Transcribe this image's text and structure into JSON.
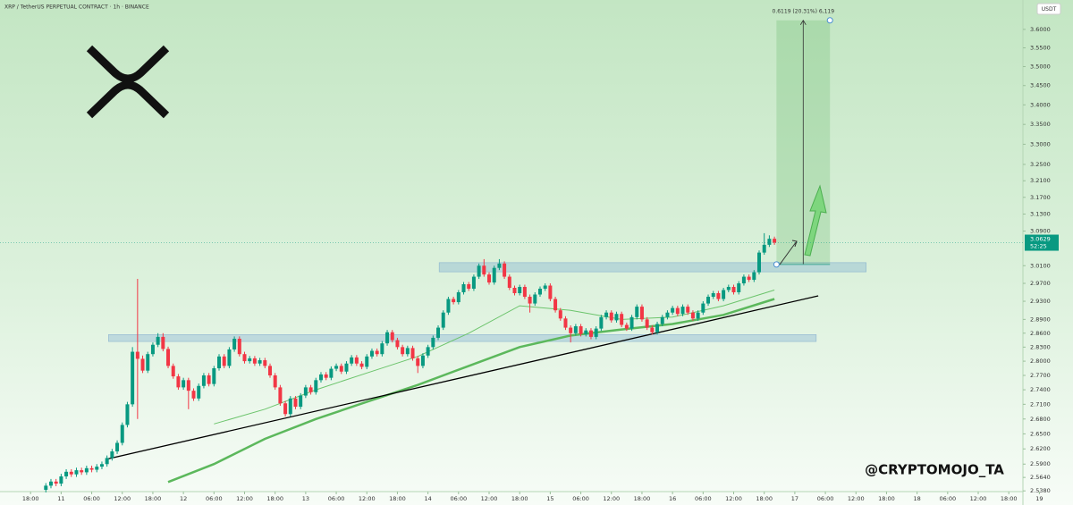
{
  "chart_data": {
    "type": "candlestick",
    "title": "XRP / TetherUS PERPETUAL CONTRACT · 1h · BINANCE",
    "currency": "USDT",
    "watermark": "@CRYPTOMOJO_TA",
    "log_scale": true,
    "up_color": "#089981",
    "down_color": "#f23645",
    "xlim": [
      -12,
      198.6
    ],
    "ylim": [
      2.511,
      3.681
    ],
    "xticks": [
      {
        "value": -6,
        "label": "18:00"
      },
      {
        "value": 0,
        "label": "11"
      },
      {
        "value": 6,
        "label": "06:00"
      },
      {
        "value": 12,
        "label": "12:00"
      },
      {
        "value": 18,
        "label": "18:00"
      },
      {
        "value": 24,
        "label": "12"
      },
      {
        "value": 30,
        "label": "06:00"
      },
      {
        "value": 36,
        "label": "12:00"
      },
      {
        "value": 42,
        "label": "18:00"
      },
      {
        "value": 48,
        "label": "13"
      },
      {
        "value": 54,
        "label": "06:00"
      },
      {
        "value": 60,
        "label": "12:00"
      },
      {
        "value": 66,
        "label": "18:00"
      },
      {
        "value": 72,
        "label": "14"
      },
      {
        "value": 78,
        "label": "06:00"
      },
      {
        "value": 84,
        "label": "12:00"
      },
      {
        "value": 90,
        "label": "18:00"
      },
      {
        "value": 96,
        "label": "15"
      },
      {
        "value": 102,
        "label": "06:00"
      },
      {
        "value": 108,
        "label": "12:00"
      },
      {
        "value": 114,
        "label": "18:00"
      },
      {
        "value": 120,
        "label": "16"
      },
      {
        "value": 126,
        "label": "06:00"
      },
      {
        "value": 132,
        "label": "12:00"
      },
      {
        "value": 138,
        "label": "18:00"
      },
      {
        "value": 144,
        "label": "17"
      },
      {
        "value": 150,
        "label": "06:00"
      },
      {
        "value": 156,
        "label": "12:00"
      },
      {
        "value": 162,
        "label": "18:00"
      },
      {
        "value": 168,
        "label": "18"
      },
      {
        "value": 174,
        "label": "06:00"
      },
      {
        "value": 180,
        "label": "12:00"
      },
      {
        "value": 186,
        "label": "18:00"
      },
      {
        "value": 192,
        "label": "19"
      }
    ],
    "yticks": [
      {
        "value": 3.6,
        "label": "3.6000"
      },
      {
        "value": 3.55,
        "label": "3.5500"
      },
      {
        "value": 3.5,
        "label": "3.5000"
      },
      {
        "value": 3.45,
        "label": "3.4500"
      },
      {
        "value": 3.4,
        "label": "3.4000"
      },
      {
        "value": 3.35,
        "label": "3.3500"
      },
      {
        "value": 3.3,
        "label": "3.3000"
      },
      {
        "value": 3.25,
        "label": "3.2500"
      },
      {
        "value": 3.21,
        "label": "3.2100"
      },
      {
        "value": 3.17,
        "label": "3.1700"
      },
      {
        "value": 3.13,
        "label": "3.1300"
      },
      {
        "value": 3.09,
        "label": "3.0900"
      },
      {
        "value": 3.01,
        "label": "3.0100"
      },
      {
        "value": 2.97,
        "label": "2.9700"
      },
      {
        "value": 2.93,
        "label": "2.9300"
      },
      {
        "value": 2.89,
        "label": "2.8900"
      },
      {
        "value": 2.86,
        "label": "2.8600"
      },
      {
        "value": 2.83,
        "label": "2.8300"
      },
      {
        "value": 2.8,
        "label": "2.8000"
      },
      {
        "value": 2.77,
        "label": "2.7700"
      },
      {
        "value": 2.74,
        "label": "2.7400"
      },
      {
        "value": 2.71,
        "label": "2.7100"
      },
      {
        "value": 2.68,
        "label": "2.6800"
      },
      {
        "value": 2.65,
        "label": "2.6500"
      },
      {
        "value": 2.62,
        "label": "2.6200"
      },
      {
        "value": 2.59,
        "label": "2.5900"
      },
      {
        "value": 2.564,
        "label": "2.5640"
      },
      {
        "value": 2.538,
        "label": "2.5380"
      }
    ],
    "x": [
      -3,
      -2,
      -1,
      0,
      1,
      2,
      3,
      4,
      5,
      6,
      7,
      8,
      9,
      10,
      11,
      12,
      13,
      14,
      15,
      16,
      17,
      18,
      19,
      20,
      21,
      22,
      23,
      24,
      25,
      26,
      27,
      28,
      29,
      30,
      31,
      32,
      33,
      34,
      35,
      36,
      37,
      38,
      39,
      40,
      41,
      42,
      43,
      44,
      45,
      46,
      47,
      48,
      49,
      50,
      51,
      52,
      53,
      54,
      55,
      56,
      57,
      58,
      59,
      60,
      61,
      62,
      63,
      64,
      65,
      66,
      67,
      68,
      69,
      70,
      71,
      72,
      73,
      74,
      75,
      76,
      77,
      78,
      79,
      80,
      81,
      82,
      83,
      84,
      85,
      86,
      87,
      88,
      89,
      90,
      91,
      92,
      93,
      94,
      95,
      96,
      97,
      98,
      99,
      100,
      101,
      102,
      103,
      104,
      105,
      106,
      107,
      108,
      109,
      110,
      111,
      112,
      113,
      114,
      115,
      116,
      117,
      118,
      119,
      120,
      121,
      122,
      123,
      124,
      125,
      126,
      127,
      128,
      129,
      130,
      131,
      132,
      133,
      134,
      135,
      136,
      137,
      138,
      139,
      140
    ],
    "open": [
      2.54,
      2.548,
      2.556,
      2.552,
      2.566,
      2.575,
      2.57,
      2.578,
      2.574,
      2.582,
      2.579,
      2.585,
      2.59,
      2.602,
      2.615,
      2.632,
      2.668,
      2.71,
      2.82,
      2.805,
      2.78,
      2.815,
      2.835,
      2.852,
      2.826,
      2.79,
      2.768,
      2.745,
      2.76,
      2.738,
      2.722,
      2.748,
      2.77,
      2.752,
      2.785,
      2.81,
      2.79,
      2.825,
      2.848,
      2.815,
      2.8,
      2.806,
      2.795,
      2.802,
      2.79,
      2.77,
      2.745,
      2.712,
      2.69,
      2.722,
      2.705,
      2.728,
      2.745,
      2.735,
      2.76,
      2.772,
      2.765,
      2.784,
      2.79,
      2.778,
      2.795,
      2.808,
      2.795,
      2.788,
      2.81,
      2.822,
      2.815,
      2.838,
      2.862,
      2.845,
      2.83,
      2.815,
      2.828,
      2.806,
      2.79,
      2.812,
      2.83,
      2.85,
      2.872,
      2.905,
      2.935,
      2.928,
      2.95,
      2.968,
      2.958,
      2.985,
      3.01,
      2.99,
      2.972,
      3.005,
      3.015,
      2.985,
      2.96,
      2.948,
      2.962,
      2.94,
      2.925,
      2.945,
      2.958,
      2.965,
      2.935,
      2.91,
      2.892,
      2.872,
      2.86,
      2.875,
      2.858,
      2.866,
      2.852,
      2.87,
      2.895,
      2.905,
      2.888,
      2.902,
      2.878,
      2.87,
      2.895,
      2.918,
      2.89,
      2.872,
      2.862,
      2.88,
      2.895,
      2.905,
      2.915,
      2.902,
      2.918,
      2.905,
      2.892,
      2.905,
      2.925,
      2.94,
      2.948,
      2.935,
      2.955,
      2.962,
      2.95,
      2.97,
      2.985,
      2.978,
      2.995,
      3.04,
      3.058,
      3.072
    ],
    "high": [
      2.553,
      2.561,
      2.561,
      2.571,
      2.58,
      2.58,
      2.583,
      2.583,
      2.587,
      2.587,
      2.59,
      2.595,
      2.607,
      2.62,
      2.637,
      2.673,
      2.715,
      2.83,
      2.98,
      2.812,
      2.82,
      2.84,
      2.86,
      2.86,
      2.831,
      2.795,
      2.773,
      2.765,
      2.765,
      2.743,
      2.753,
      2.775,
      2.775,
      2.79,
      2.815,
      2.815,
      2.83,
      2.853,
      2.853,
      2.82,
      2.811,
      2.811,
      2.807,
      2.807,
      2.795,
      2.775,
      2.75,
      2.717,
      2.727,
      2.727,
      2.733,
      2.75,
      2.75,
      2.765,
      2.777,
      2.777,
      2.789,
      2.795,
      2.795,
      2.8,
      2.813,
      2.813,
      2.8,
      2.815,
      2.827,
      2.827,
      2.843,
      2.867,
      2.867,
      2.85,
      2.835,
      2.833,
      2.833,
      2.811,
      2.817,
      2.835,
      2.855,
      2.877,
      2.91,
      2.94,
      2.94,
      2.955,
      2.973,
      2.973,
      2.99,
      3.015,
      3.025,
      2.995,
      3.01,
      3.025,
      3.02,
      2.99,
      2.965,
      2.967,
      2.967,
      2.945,
      2.95,
      2.963,
      2.97,
      2.97,
      2.94,
      2.915,
      2.897,
      2.877,
      2.88,
      2.88,
      2.871,
      2.871,
      2.875,
      2.9,
      2.91,
      2.91,
      2.907,
      2.907,
      2.883,
      2.9,
      2.923,
      2.923,
      2.895,
      2.877,
      2.885,
      2.9,
      2.91,
      2.92,
      2.92,
      2.923,
      2.923,
      2.91,
      2.91,
      2.93,
      2.945,
      2.953,
      2.953,
      2.96,
      2.967,
      2.967,
      2.975,
      2.99,
      2.99,
      3.0,
      3.045,
      3.085,
      3.08,
      3.077
    ],
    "low": [
      2.535,
      2.543,
      2.547,
      2.547,
      2.561,
      2.565,
      2.565,
      2.569,
      2.569,
      2.574,
      2.574,
      2.58,
      2.585,
      2.597,
      2.61,
      2.627,
      2.663,
      2.705,
      2.68,
      2.775,
      2.775,
      2.81,
      2.83,
      2.821,
      2.785,
      2.763,
      2.74,
      2.74,
      2.7,
      2.717,
      2.717,
      2.743,
      2.747,
      2.747,
      2.78,
      2.785,
      2.785,
      2.82,
      2.81,
      2.795,
      2.795,
      2.79,
      2.79,
      2.785,
      2.765,
      2.74,
      2.707,
      2.685,
      2.685,
      2.7,
      2.7,
      2.723,
      2.73,
      2.73,
      2.755,
      2.76,
      2.76,
      2.779,
      2.773,
      2.773,
      2.79,
      2.79,
      2.783,
      2.783,
      2.805,
      2.81,
      2.81,
      2.833,
      2.84,
      2.825,
      2.81,
      2.81,
      2.801,
      2.775,
      2.785,
      2.807,
      2.825,
      2.845,
      2.867,
      2.9,
      2.923,
      2.923,
      2.945,
      2.953,
      2.953,
      2.98,
      2.985,
      2.967,
      2.967,
      3.0,
      2.98,
      2.955,
      2.943,
      2.943,
      2.935,
      2.905,
      2.92,
      2.94,
      2.953,
      2.93,
      2.905,
      2.887,
      2.867,
      2.84,
      2.855,
      2.853,
      2.853,
      2.847,
      2.847,
      2.865,
      2.89,
      2.883,
      2.883,
      2.873,
      2.865,
      2.865,
      2.89,
      2.885,
      2.867,
      2.857,
      2.857,
      2.875,
      2.89,
      2.9,
      2.897,
      2.897,
      2.9,
      2.887,
      2.887,
      2.9,
      2.92,
      2.935,
      2.93,
      2.93,
      2.95,
      2.945,
      2.945,
      2.965,
      2.973,
      2.973,
      2.99,
      3.035,
      3.053,
      3.058
    ],
    "close": [
      2.548,
      2.556,
      2.552,
      2.566,
      2.575,
      2.57,
      2.578,
      2.574,
      2.582,
      2.579,
      2.585,
      2.59,
      2.602,
      2.615,
      2.632,
      2.668,
      2.71,
      2.82,
      2.805,
      2.78,
      2.815,
      2.835,
      2.852,
      2.826,
      2.79,
      2.768,
      2.745,
      2.76,
      2.738,
      2.722,
      2.748,
      2.77,
      2.752,
      2.785,
      2.81,
      2.79,
      2.825,
      2.848,
      2.815,
      2.8,
      2.806,
      2.795,
      2.802,
      2.79,
      2.77,
      2.745,
      2.712,
      2.69,
      2.722,
      2.705,
      2.728,
      2.745,
      2.735,
      2.76,
      2.772,
      2.765,
      2.784,
      2.79,
      2.778,
      2.795,
      2.808,
      2.795,
      2.788,
      2.81,
      2.822,
      2.815,
      2.838,
      2.862,
      2.845,
      2.83,
      2.815,
      2.828,
      2.806,
      2.79,
      2.812,
      2.83,
      2.85,
      2.872,
      2.905,
      2.935,
      2.928,
      2.95,
      2.968,
      2.958,
      2.985,
      3.01,
      2.99,
      2.972,
      3.005,
      3.015,
      2.985,
      2.96,
      2.948,
      2.962,
      2.94,
      2.925,
      2.945,
      2.958,
      2.965,
      2.935,
      2.91,
      2.892,
      2.872,
      2.86,
      2.875,
      2.858,
      2.866,
      2.852,
      2.87,
      2.895,
      2.905,
      2.888,
      2.902,
      2.878,
      2.87,
      2.895,
      2.918,
      2.89,
      2.872,
      2.862,
      2.88,
      2.895,
      2.905,
      2.915,
      2.902,
      2.918,
      2.905,
      2.892,
      2.905,
      2.925,
      2.94,
      2.948,
      2.935,
      2.955,
      2.962,
      2.95,
      2.97,
      2.985,
      2.978,
      2.995,
      3.04,
      3.058,
      3.072,
      3.0629
    ],
    "lines": [
      {
        "color": "#6cc46c",
        "width": 1,
        "x": [
          30,
          40,
          50,
          60,
          70,
          80,
          90,
          100,
          110,
          120,
          130,
          140
        ],
        "values": [
          2.67,
          2.7,
          2.74,
          2.775,
          2.81,
          2.86,
          2.92,
          2.91,
          2.89,
          2.895,
          2.92,
          2.955
        ]
      },
      {
        "color": "#5cb85c",
        "width": 2.5,
        "x": [
          21,
          30,
          40,
          50,
          60,
          70,
          80,
          90,
          100,
          110,
          120,
          130,
          140
        ],
        "values": [
          2.555,
          2.59,
          2.64,
          2.68,
          2.715,
          2.75,
          2.79,
          2.83,
          2.855,
          2.868,
          2.88,
          2.9,
          2.935
        ]
      }
    ],
    "trendline": {
      "color": "#000000",
      "x": [
        9,
        148.6
      ],
      "values": [
        2.6,
        2.942
      ]
    },
    "zones": [
      {
        "xlim": [
          9.3,
          148.2
        ],
        "ylim": [
          2.842,
          2.857
        ]
      },
      {
        "xlim": [
          74.2,
          158
        ],
        "ylim": [
          2.996,
          3.017
        ]
      }
    ],
    "target": {
      "label": "0.6119 (20.31%) 6,119",
      "xlim": [
        140.4,
        150.9
      ],
      "entry": 3.0128,
      "top": 3.6247
    },
    "last_price": 3.0629,
    "countdown": "52:25"
  }
}
